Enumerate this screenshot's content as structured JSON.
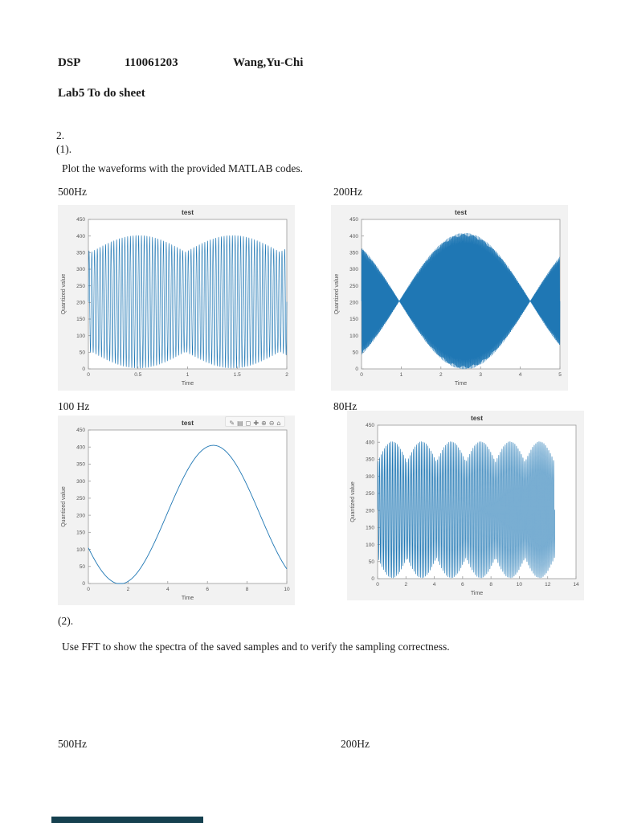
{
  "page": {
    "header": {
      "course": "DSP",
      "student_id": "110061203",
      "student_name": "Wang,Yu-Chi",
      "title": "Lab5  To do sheet"
    },
    "section": {
      "number": "2.",
      "part1": "(1).",
      "part1_text": "Plot the waveforms with the provided MATLAB codes.",
      "part2": "(2).",
      "part2_text": "Use FFT to show the spectra of the saved samples and to verify the sampling correctness."
    },
    "labels": {
      "plot1": "500Hz",
      "plot2": "200Hz",
      "plot3": "100 Hz",
      "plot4": "80Hz",
      "fft1": "500Hz",
      "fft2": "200Hz"
    }
  },
  "colors": {
    "line": "#1f77b4",
    "figure_bg": "#f2f2f2",
    "axes_border": "#9a9a9a",
    "title": "#3a3a3a",
    "tick": "#555555",
    "cropped_bar": "#15404f"
  },
  "toolbar": {
    "icons": [
      {
        "name": "brush-icon",
        "glyph": "✎"
      },
      {
        "name": "data-tips-icon",
        "glyph": "▤"
      },
      {
        "name": "rotate-icon",
        "glyph": "◻"
      },
      {
        "name": "pan-icon",
        "glyph": "✚"
      },
      {
        "name": "zoom-in-icon",
        "glyph": "⊕"
      },
      {
        "name": "zoom-out-icon",
        "glyph": "⊖"
      },
      {
        "name": "restore-view-icon",
        "glyph": "⌂"
      }
    ]
  },
  "chart_data": [
    {
      "type": "line",
      "title": "test",
      "xlabel": "Time",
      "ylabel": "Quantized value",
      "freq_label": "500Hz",
      "xlim": [
        0,
        2
      ],
      "ylim": [
        0,
        450
      ],
      "xticks": [
        0,
        0.5,
        1,
        1.5,
        2
      ],
      "yticks": [
        0,
        50,
        100,
        150,
        200,
        250,
        300,
        350,
        400,
        450
      ],
      "description": "Densely sampled 500 Hz sinusoid, quantized 0-450, beating envelope with nodes near t=0, t=1 and t=2",
      "wave": {
        "kind": "am",
        "mid": 202,
        "carrier_cycles": 72,
        "amp_min": 150,
        "amp_max": 200,
        "env_period": 0.95,
        "env_t0": 0.03,
        "t_end": 2,
        "samples": 2400,
        "stroke": 0.6
      }
    },
    {
      "type": "line",
      "title": "test",
      "xlabel": "Time",
      "ylabel": "Quantized value",
      "freq_label": "200Hz",
      "xlim": [
        0,
        5
      ],
      "ylim": [
        0,
        450
      ],
      "xticks": [
        0,
        1,
        2,
        3,
        4,
        5
      ],
      "yticks": [
        0,
        50,
        100,
        150,
        200,
        250,
        300,
        350,
        400,
        450
      ],
      "description": "Densely sampled 200 Hz sinusoid, strong beat envelope with nodes near t=0.95 and t=4.25, full lobe peaking near t=2.6",
      "wave": {
        "kind": "am",
        "mid": 204,
        "carrier_cycles": 380,
        "amp_min": 0,
        "amp_max": 205,
        "env_period": 3.3,
        "env_t0": 0.95,
        "t_end": 5,
        "samples": 3600,
        "stroke": 0.55
      }
    },
    {
      "type": "line",
      "title": "test",
      "xlabel": "Time",
      "ylabel": "Quantized value",
      "freq_label": "100 Hz",
      "xlim": [
        0,
        10
      ],
      "ylim": [
        0,
        450
      ],
      "xticks": [
        0,
        2,
        4,
        6,
        8,
        10
      ],
      "yticks": [
        0,
        50,
        100,
        150,
        200,
        250,
        300,
        350,
        400,
        450
      ],
      "description": "Single slow aliased sinusoid: starts near 100, touches 0 near t=1.8, peaks near 405 at t=6.3, falls to about 45 at t=10",
      "has_toolbar": true,
      "wave": {
        "kind": "sine",
        "mid": 202,
        "amp": 203,
        "peak_t": 6.3,
        "period": 9.4,
        "t_end": 10,
        "samples": 700,
        "stroke": 0.9
      }
    },
    {
      "type": "line",
      "title": "test",
      "xlabel": "Time",
      "ylabel": "Quantized value",
      "freq_label": "80Hz",
      "xlim": [
        0,
        14
      ],
      "ylim": [
        0,
        450
      ],
      "xticks": [
        0,
        2,
        4,
        6,
        8,
        10,
        12,
        14
      ],
      "yticks": [
        0,
        50,
        100,
        150,
        200,
        250,
        300,
        350,
        400,
        450
      ],
      "description": "Densely sampled 80 Hz sinusoid with scalloped envelope lobes about every 2 s, data ends near t=12.5",
      "wave": {
        "kind": "am",
        "mid": 202,
        "carrier_cycles": 110,
        "amp_min": 140,
        "amp_max": 200,
        "env_period": 2.08,
        "env_t0": 0,
        "t_end": 12.5,
        "samples": 3000,
        "stroke": 0.6
      }
    }
  ]
}
